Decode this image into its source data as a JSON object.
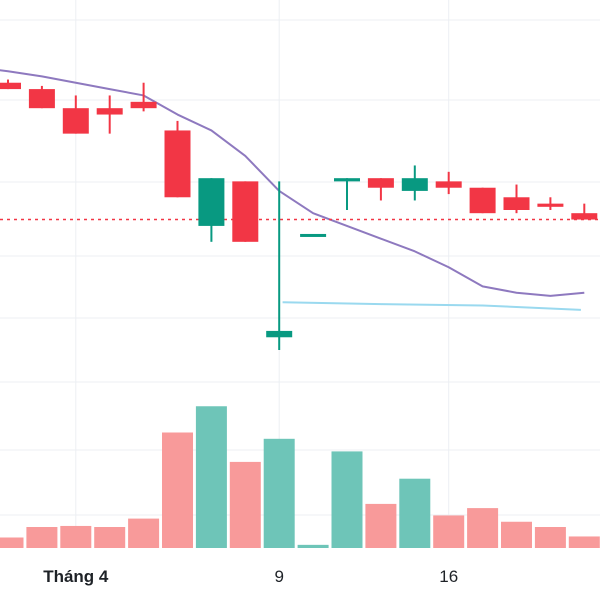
{
  "chart_data": {
    "type": "candlestick",
    "title": "",
    "xlabel": "",
    "ylabel": "",
    "grid": true,
    "x_tick_labels": [
      {
        "label": "Tháng 4",
        "index": 2,
        "bold": true
      },
      {
        "label": "9",
        "index": 8,
        "bold": false
      },
      {
        "label": "16",
        "index": 13,
        "bold": false
      }
    ],
    "colors": {
      "up": "#089981",
      "down": "#f23645",
      "up_volume": "#6ec5b8",
      "down_volume": "#f89a9a",
      "ma_line": "#8e79bf",
      "ma_line_2": "#9ad9ef",
      "price_line": "#f23645",
      "grid": "#eceff3"
    },
    "price_range": [
      37,
      103
    ],
    "reference_price": 68.5,
    "candles": [
      {
        "open": 90,
        "high": 90.5,
        "low": 89,
        "close": 89
      },
      {
        "open": 89,
        "high": 89.5,
        "low": 86,
        "close": 86
      },
      {
        "open": 86,
        "high": 88,
        "low": 82,
        "close": 82
      },
      {
        "open": 86,
        "high": 88,
        "low": 82,
        "close": 85
      },
      {
        "open": 87,
        "high": 90,
        "low": 85.5,
        "close": 86
      },
      {
        "open": 82.5,
        "high": 84,
        "low": 72,
        "close": 72
      },
      {
        "open": 67.5,
        "high": 75,
        "low": 65,
        "close": 75
      },
      {
        "open": 74.5,
        "high": 74.5,
        "low": 65,
        "close": 65
      },
      {
        "open": 50,
        "high": 74.5,
        "low": 48,
        "close": 51
      },
      {
        "open": 66,
        "high": 66,
        "low": 66,
        "close": 66
      },
      {
        "open": 74.5,
        "high": 75,
        "low": 70,
        "close": 75
      },
      {
        "open": 75,
        "high": 75,
        "low": 71.5,
        "close": 73.5
      },
      {
        "open": 73,
        "high": 77,
        "low": 71.5,
        "close": 75
      },
      {
        "open": 74.5,
        "high": 76,
        "low": 72.5,
        "close": 73.5
      },
      {
        "open": 73.5,
        "high": 73.5,
        "low": 69.5,
        "close": 69.5
      },
      {
        "open": 72,
        "high": 74,
        "low": 69.5,
        "close": 70
      },
      {
        "open": 71,
        "high": 72,
        "low": 70,
        "close": 70.5
      },
      {
        "open": 69.5,
        "high": 71,
        "low": 68.5,
        "close": 68.5
      }
    ],
    "volumes": [
      10,
      20,
      21,
      20,
      28,
      110,
      135,
      82,
      104,
      3,
      92,
      42,
      66,
      31,
      38,
      25,
      20,
      11
    ],
    "volume_range": [
      0,
      160
    ],
    "ma_series": [
      {
        "x": -0.3,
        "y": 92
      },
      {
        "x": 0,
        "y": 91.8
      },
      {
        "x": 1,
        "y": 91
      },
      {
        "x": 2,
        "y": 90
      },
      {
        "x": 3,
        "y": 89
      },
      {
        "x": 4,
        "y": 88
      },
      {
        "x": 5,
        "y": 85
      },
      {
        "x": 6,
        "y": 82.5
      },
      {
        "x": 7,
        "y": 78.5
      },
      {
        "x": 8,
        "y": 73
      },
      {
        "x": 9,
        "y": 69.5
      },
      {
        "x": 10,
        "y": 67.5
      },
      {
        "x": 11,
        "y": 65.5
      },
      {
        "x": 12,
        "y": 63.5
      },
      {
        "x": 13,
        "y": 61
      },
      {
        "x": 14,
        "y": 58
      },
      {
        "x": 15,
        "y": 57
      },
      {
        "x": 16,
        "y": 56.5
      },
      {
        "x": 17,
        "y": 57
      }
    ],
    "ma_series_2": [
      {
        "x": 8.1,
        "y": 55.5
      },
      {
        "x": 11,
        "y": 55.2
      },
      {
        "x": 14,
        "y": 55
      },
      {
        "x": 16.9,
        "y": 54.3
      }
    ]
  }
}
